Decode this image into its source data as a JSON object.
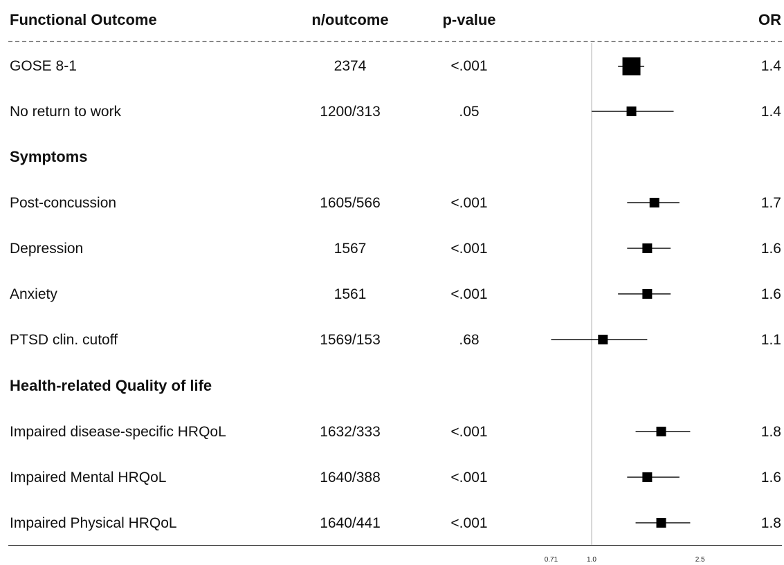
{
  "headers": {
    "label": "Functional Outcome",
    "n": "n/outcome",
    "p": "p-value",
    "or": "OR"
  },
  "sections": {
    "symptoms": "Symptoms",
    "hrqol": "Health-related Quality of life"
  },
  "rows": [
    {
      "label": "GOSE 8-1",
      "n": "2374",
      "p": "<.001",
      "or": "1.4"
    },
    {
      "label": "No return to work",
      "n": "1200/313",
      "p": ".05",
      "or": "1.4"
    },
    {
      "label": "Post-concussion",
      "n": "1605/566",
      "p": "<.001",
      "or": "1.7"
    },
    {
      "label": "Depression",
      "n": "1567",
      "p": "<.001",
      "or": "1.6"
    },
    {
      "label": "Anxiety",
      "n": "1561",
      "p": "<.001",
      "or": "1.6"
    },
    {
      "label": "PTSD clin. cutoff",
      "n": "1569/153",
      "p": ".68",
      "or": "1.1"
    },
    {
      "label": "Impaired disease-specific HRQoL",
      "n": "1632/333",
      "p": "<.001",
      "or": "1.8"
    },
    {
      "label": "Impaired Mental HRQoL",
      "n": "1640/388",
      "p": "<.001",
      "or": "1.6"
    },
    {
      "label": "Impaired Physical HRQoL",
      "n": "1640/441",
      "p": "<.001",
      "or": "1.8"
    }
  ],
  "chart_data": {
    "type": "scatter",
    "subtype": "forest-plot",
    "x_scale": "log",
    "reference_line": 1.0,
    "x_ticks": [
      "0.71",
      "1.0",
      "2.5"
    ],
    "xlim": [
      0.71,
      2.5
    ],
    "points": [
      {
        "row": "GOSE 8-1",
        "or": 1.4,
        "lo": 1.25,
        "hi": 1.56,
        "weight": "large"
      },
      {
        "row": "No return to work",
        "or": 1.4,
        "lo": 1.0,
        "hi": 2.0,
        "weight": "small"
      },
      {
        "row": "Post-concussion",
        "or": 1.7,
        "lo": 1.35,
        "hi": 2.1,
        "weight": "small"
      },
      {
        "row": "Depression",
        "or": 1.6,
        "lo": 1.35,
        "hi": 1.95,
        "weight": "small"
      },
      {
        "row": "Anxiety",
        "or": 1.6,
        "lo": 1.25,
        "hi": 1.95,
        "weight": "small"
      },
      {
        "row": "PTSD clin. cutoff",
        "or": 1.1,
        "lo": 0.71,
        "hi": 1.6,
        "weight": "small"
      },
      {
        "row": "Impaired disease-specific HRQoL",
        "or": 1.8,
        "lo": 1.45,
        "hi": 2.3,
        "weight": "small"
      },
      {
        "row": "Impaired Mental HRQoL",
        "or": 1.6,
        "lo": 1.35,
        "hi": 2.1,
        "weight": "small"
      },
      {
        "row": "Impaired Physical HRQoL",
        "or": 1.8,
        "lo": 1.45,
        "hi": 2.3,
        "weight": "small"
      }
    ]
  }
}
